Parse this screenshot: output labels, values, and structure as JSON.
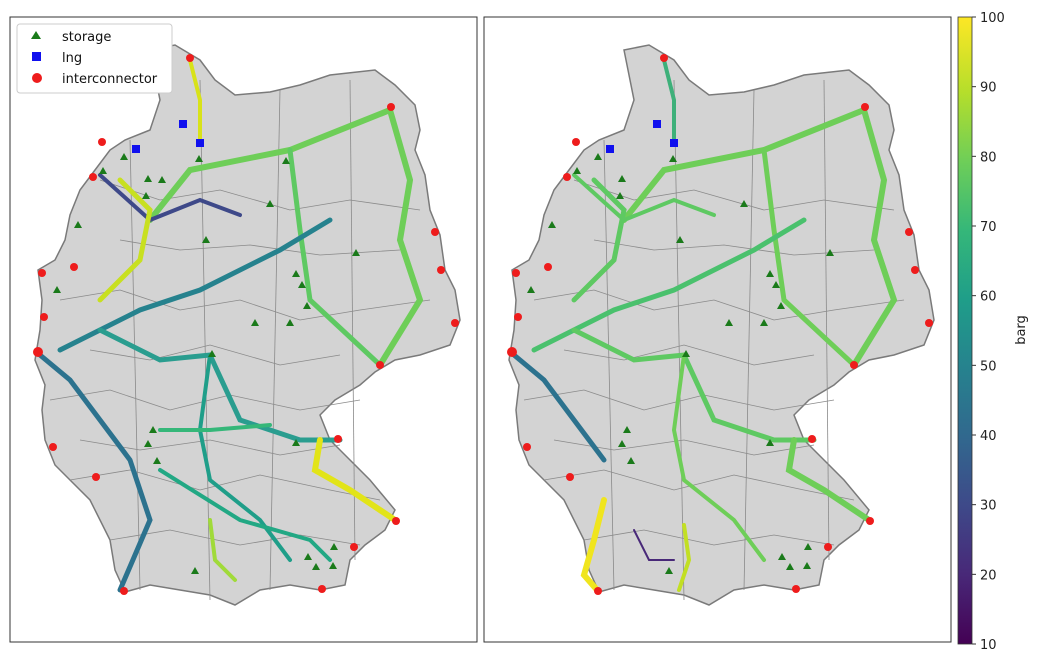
{
  "legend": {
    "items": [
      {
        "label": "storage",
        "marker": "triangle",
        "color": "#1a7a1a"
      },
      {
        "label": "lng",
        "marker": "square",
        "color": "#1010ee"
      },
      {
        "label": "interconnector",
        "marker": "circle",
        "color": "#ee1c1c"
      }
    ]
  },
  "colorbar": {
    "label": "barg",
    "min": 10,
    "max": 100,
    "ticks": [
      "10",
      "20",
      "30",
      "40",
      "50",
      "60",
      "70",
      "80",
      "90",
      "100"
    ],
    "colormap": "viridis"
  },
  "panels": [
    {
      "name": "left",
      "description_free": true
    },
    {
      "name": "right",
      "description_free": true
    }
  ],
  "colors": {
    "land": "#d3d3d3",
    "borders": "#7a7a7a",
    "frame": "#333333",
    "storage": "#1a7a1a",
    "lng": "#1010ee",
    "interconnector": "#ee1c1c"
  }
}
